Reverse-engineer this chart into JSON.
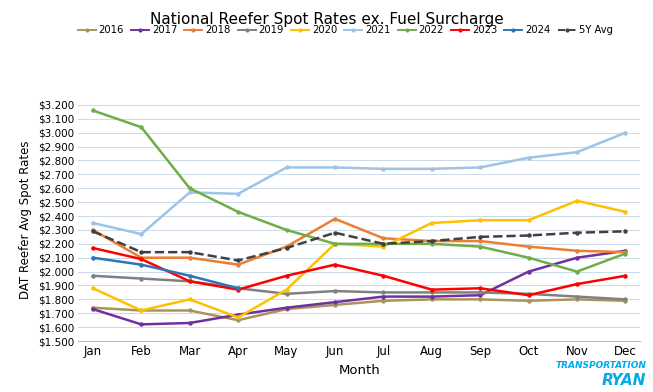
{
  "title": "National Reefer Spot Rates ex. Fuel Surcharge",
  "xlabel": "Month",
  "ylabel": "DAT Reefer Avg Spot Rates",
  "months": [
    "Jan",
    "Feb",
    "Mar",
    "Apr",
    "May",
    "Jun",
    "Jul",
    "Aug",
    "Sep",
    "Oct",
    "Nov",
    "Dec"
  ],
  "ylim": [
    1.5,
    3.25
  ],
  "yticks": [
    1.5,
    1.6,
    1.7,
    1.8,
    1.9,
    2.0,
    2.1,
    2.2,
    2.3,
    2.4,
    2.5,
    2.6,
    2.7,
    2.8,
    2.9,
    3.0,
    3.1,
    3.2
  ],
  "series": {
    "2016": {
      "color": "#a8955a",
      "data": [
        1.74,
        1.72,
        1.72,
        1.65,
        1.73,
        1.76,
        1.79,
        1.8,
        1.8,
        1.79,
        1.8,
        1.79
      ]
    },
    "2017": {
      "color": "#7030a0",
      "data": [
        1.73,
        1.62,
        1.63,
        1.69,
        1.74,
        1.78,
        1.82,
        1.82,
        1.83,
        2.0,
        2.1,
        2.15
      ]
    },
    "2018": {
      "color": "#ed7d31",
      "data": [
        2.3,
        2.1,
        2.1,
        2.05,
        2.18,
        2.38,
        2.24,
        2.22,
        2.22,
        2.18,
        2.15,
        2.14
      ]
    },
    "2019": {
      "color": "#808080",
      "data": [
        1.97,
        1.95,
        1.93,
        1.88,
        1.84,
        1.86,
        1.85,
        1.85,
        1.85,
        1.84,
        1.82,
        1.8
      ]
    },
    "2020": {
      "color": "#ffc000",
      "data": [
        1.88,
        1.72,
        1.8,
        1.67,
        1.87,
        2.2,
        2.18,
        2.35,
        2.37,
        2.37,
        2.51,
        2.43
      ]
    },
    "2021": {
      "color": "#9dc3e6",
      "data": [
        2.35,
        2.27,
        2.57,
        2.56,
        2.75,
        2.75,
        2.74,
        2.74,
        2.75,
        2.82,
        2.86,
        3.0
      ]
    },
    "2022": {
      "color": "#70ad47",
      "data": [
        3.16,
        3.04,
        2.6,
        2.43,
        2.3,
        2.2,
        2.2,
        2.2,
        2.18,
        2.1,
        2.0,
        2.13
      ]
    },
    "2023": {
      "color": "#ff0000",
      "data": [
        2.17,
        2.09,
        1.93,
        1.87,
        1.97,
        2.05,
        1.97,
        1.87,
        1.88,
        1.83,
        1.91,
        1.97
      ]
    },
    "2024": {
      "color": "#2e75b6",
      "data": [
        2.1,
        2.05,
        1.97,
        1.88,
        null,
        null,
        null,
        null,
        null,
        null,
        null,
        null
      ]
    },
    "5Y Avg": {
      "color": "#404040",
      "data": [
        2.29,
        2.14,
        2.14,
        2.08,
        2.17,
        2.28,
        2.2,
        2.22,
        2.25,
        2.26,
        2.28,
        2.29
      ],
      "dashed": true
    }
  },
  "background_color": "#ffffff",
  "grid_color": "#ccd9e8",
  "dat_logo_color": "#4a90c4",
  "ryan_logo_color": "#00aaee"
}
